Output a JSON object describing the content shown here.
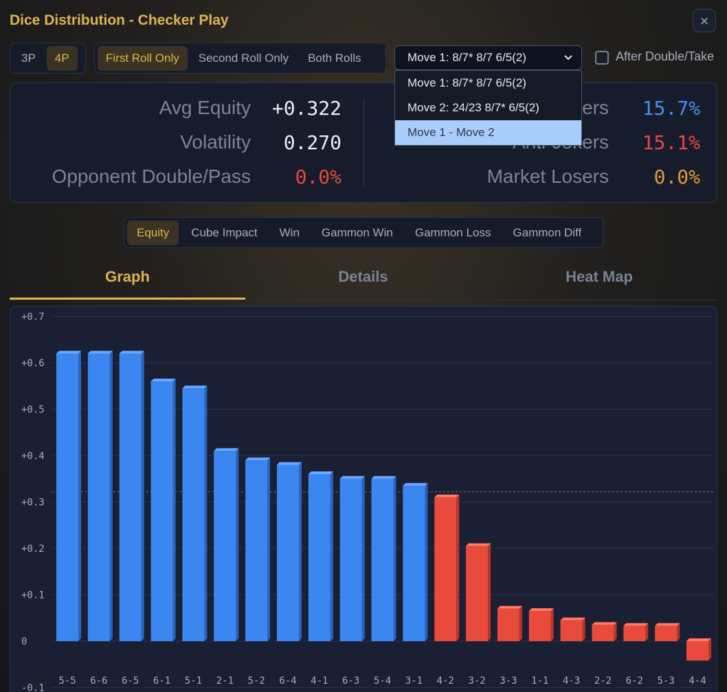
{
  "window": {
    "title": "Dice Distribution - Checker Play",
    "close_glyph": "×"
  },
  "player_toggle": {
    "options": [
      "3P",
      "4P"
    ],
    "active": "4P"
  },
  "roll_toggle": {
    "options": [
      "First Roll Only",
      "Second Roll Only",
      "Both Rolls"
    ],
    "active": "First Roll Only"
  },
  "move_select": {
    "value": "Move 1: 8/7* 8/7 6/5(2)",
    "options": [
      "Move 1: 8/7* 8/7 6/5(2)",
      "Move 2: 24/23 8/7* 6/5(2)",
      "Move 1 - Move 2"
    ],
    "highlighted": "Move 1 - Move 2"
  },
  "after_double": {
    "label": "After Double/Take",
    "checked": false
  },
  "stats": {
    "avg_equity_label": "Avg Equity",
    "avg_equity": "+0.322",
    "volatility_label": "Volatility",
    "volatility": "0.270",
    "opp_double_label": "Opponent Double/Pass",
    "opp_double": "0.0%",
    "jokers_label": "Jokers",
    "jokers": "15.7%",
    "anti_jokers_label": "Anti-Jokers",
    "anti_jokers": "15.1%",
    "market_losers_label": "Market Losers",
    "market_losers": "0.0%"
  },
  "metric_tabs": {
    "options": [
      "Equity",
      "Cube Impact",
      "Win",
      "Gammon Win",
      "Gammon Loss",
      "Gammon Diff"
    ],
    "active": "Equity"
  },
  "view_tabs": {
    "graph": "Graph",
    "details": "Details",
    "heatmap": "Heat Map",
    "active": "Graph"
  },
  "colors": {
    "accent": "#e0b54f",
    "positive_bar": "#3b87f2",
    "negative_bar": "#e84a3c",
    "jokers": "#4a8df0",
    "anti_jokers": "#e84a3c",
    "market_losers": "#e89a2a",
    "zero_red": "#e84a3c"
  },
  "chart_data": {
    "type": "bar",
    "categories": [
      "5-5",
      "6-6",
      "6-5",
      "6-1",
      "5-1",
      "2-1",
      "5-2",
      "6-4",
      "4-1",
      "6-3",
      "5-4",
      "3-1",
      "4-2",
      "3-2",
      "3-3",
      "1-1",
      "4-3",
      "2-2",
      "6-2",
      "5-3",
      "4-4"
    ],
    "values": [
      0.62,
      0.62,
      0.62,
      0.56,
      0.545,
      0.41,
      0.39,
      0.38,
      0.36,
      0.35,
      0.35,
      0.335,
      0.31,
      0.205,
      0.07,
      0.065,
      0.045,
      0.035,
      0.033,
      0.033,
      -0.042
    ],
    "reference_line": 0.322,
    "y_ticks": [
      "+0.7",
      "+0.6",
      "+0.5",
      "+0.4",
      "+0.3",
      "+0.2",
      "+0.1",
      "0",
      "-0.1"
    ],
    "ylim": [
      -0.1,
      0.7
    ],
    "grid": true,
    "xlabel": "",
    "ylabel": "",
    "title": ""
  }
}
